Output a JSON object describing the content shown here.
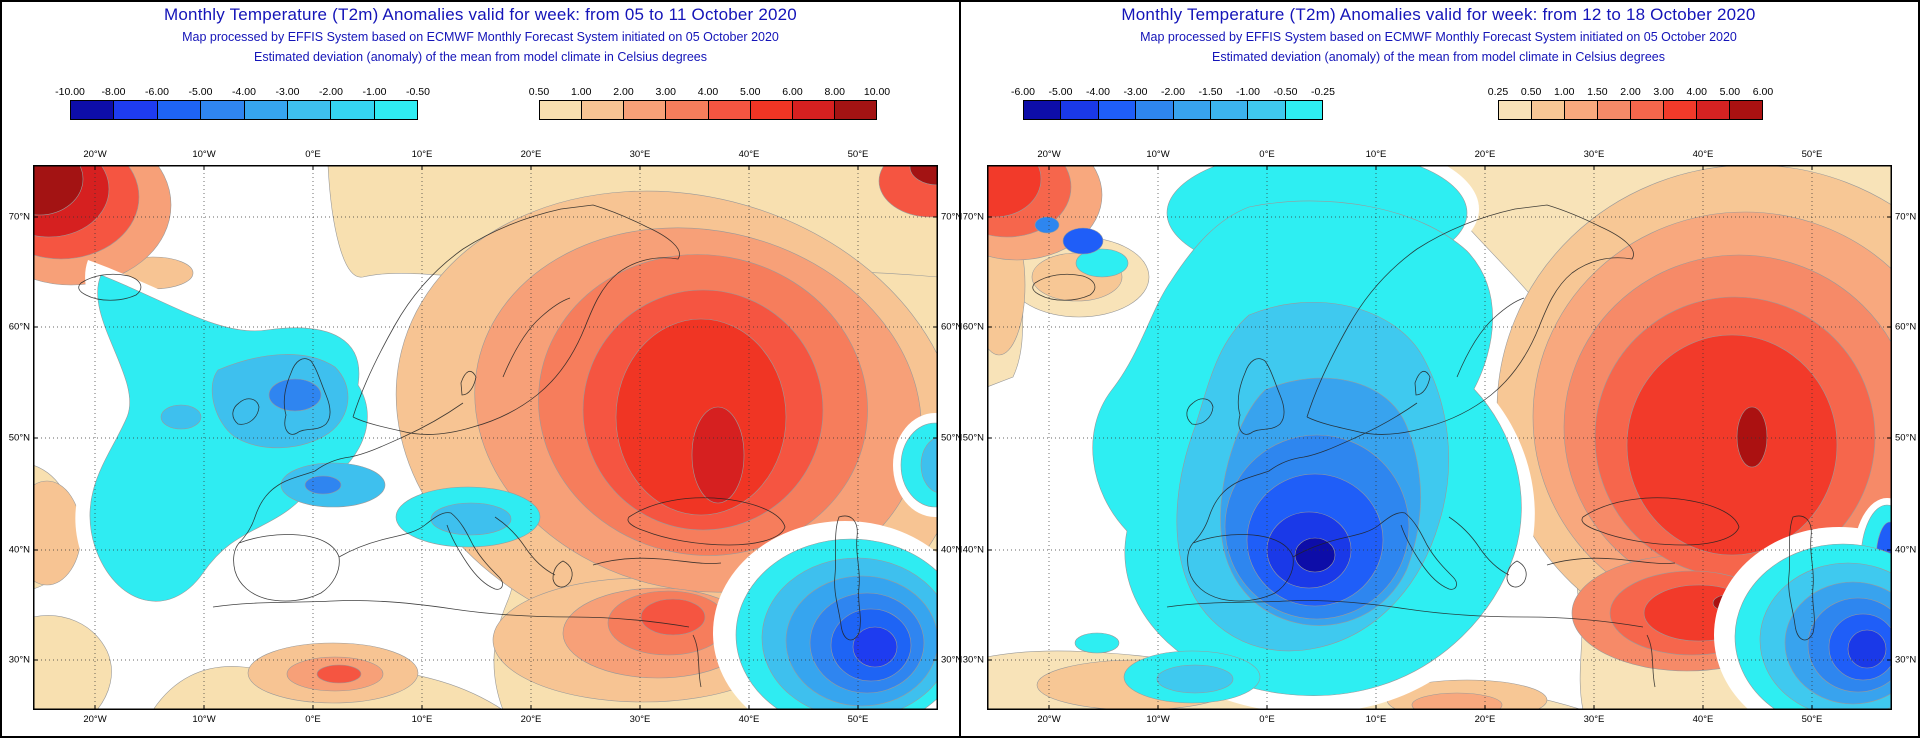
{
  "panels": [
    {
      "title": "Monthly Temperature (T2m) Anomalies valid for week: from 05 to 11 October 2020",
      "subtitle1": "Map processed by EFFIS System based on ECMWF Monthly Forecast System initiated on 05 October 2020",
      "subtitle2": "Estimated deviation (anomaly) of the mean from model climate in Celsius degrees",
      "neg_scale": {
        "labels": [
          "-10.00",
          "-8.00",
          "-6.00",
          "-5.00",
          "-4.00",
          "-3.00",
          "-2.00",
          "-1.00",
          "-0.50"
        ],
        "colors": [
          "#0d0da8",
          "#1e3cf0",
          "#1e64f5",
          "#2f85f0",
          "#36a5ef",
          "#3ec0ee",
          "#35d5f1",
          "#2fecf2"
        ]
      },
      "pos_scale": {
        "labels": [
          "0.50",
          "1.00",
          "2.00",
          "3.00",
          "4.00",
          "5.00",
          "6.00",
          "8.00",
          "10.00"
        ],
        "colors": [
          "#f8e0b0",
          "#f7c493",
          "#f7a078",
          "#f67d5c",
          "#f55541",
          "#f03524",
          "#d62020",
          "#a31313"
        ]
      },
      "axis": {
        "lon": [
          "20°W",
          "10°W",
          "0°E",
          "10°E",
          "20°E",
          "30°E",
          "40°E",
          "50°E"
        ],
        "lat": [
          "70°N",
          "60°N",
          "50°N",
          "40°N",
          "30°N"
        ]
      }
    },
    {
      "title": "Monthly Temperature (T2m) Anomalies valid for week: from 12 to 18 October 2020",
      "subtitle1": "Map processed by EFFIS System based on ECMWF Monthly Forecast System initiated on 05 October 2020",
      "subtitle2": "Estimated deviation (anomaly) of the mean from model climate in Celsius degrees",
      "neg_scale": {
        "labels": [
          "-6.00",
          "-5.00",
          "-4.00",
          "-3.00",
          "-2.00",
          "-1.50",
          "-1.00",
          "-0.50",
          "-0.25"
        ],
        "colors": [
          "#0d0da8",
          "#1a39e8",
          "#1f5ef8",
          "#2e86ef",
          "#38a3ee",
          "#3cb4ef",
          "#3fc9ef",
          "#2eeef2"
        ]
      },
      "pos_scale": {
        "labels": [
          "0.25",
          "0.50",
          "1.00",
          "1.50",
          "2.00",
          "3.00",
          "4.00",
          "5.00",
          "6.00"
        ],
        "colors": [
          "#f8e3b8",
          "#f7c795",
          "#f8a87e",
          "#f68a68",
          "#f6664c",
          "#f23a2a",
          "#d62222",
          "#ab1111"
        ]
      },
      "axis": {
        "lon": [
          "20°W",
          "10°W",
          "0°E",
          "10°E",
          "20°E",
          "30°E",
          "40°E",
          "50°E"
        ],
        "lat": [
          "70°N",
          "60°N",
          "50°N",
          "40°N",
          "30°N"
        ]
      }
    }
  ],
  "styles": {
    "title_color": "#1414b8",
    "frame_color": "#000000",
    "white": "#ffffff"
  }
}
